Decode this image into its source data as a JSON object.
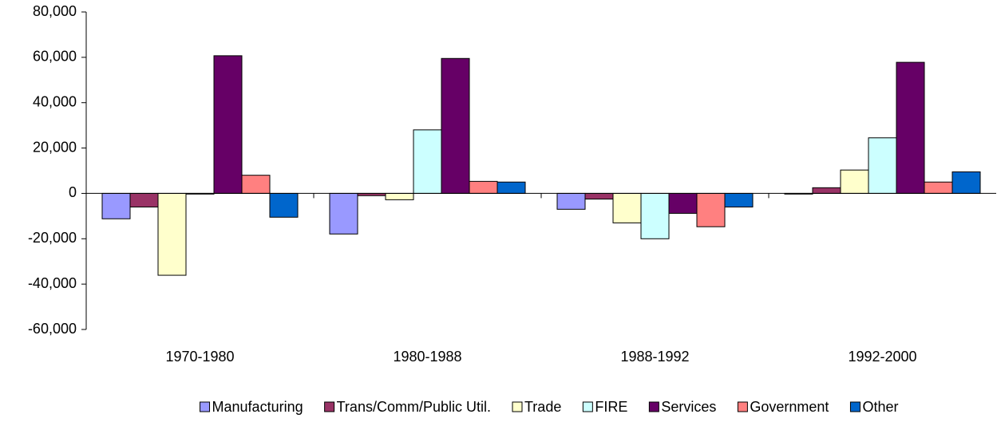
{
  "chart_data": {
    "type": "bar",
    "categories": [
      "1970-1980",
      "1980-1988",
      "1988-1992",
      "1992-2000"
    ],
    "series": [
      {
        "name": "Manufacturing",
        "color": "#9999ff",
        "values": [
          -11200,
          -17900,
          -7000,
          -300
        ]
      },
      {
        "name": "Trans/Comm/Public Util.",
        "color": "#993366",
        "values": [
          -6000,
          -1000,
          -2500,
          2500
        ]
      },
      {
        "name": "Trade",
        "color": "#ffffcc",
        "values": [
          -36100,
          -2800,
          -13000,
          10300
        ]
      },
      {
        "name": "FIRE",
        "color": "#ccffff",
        "values": [
          -300,
          28000,
          -20000,
          24500
        ]
      },
      {
        "name": "Services",
        "color": "#660066",
        "values": [
          60700,
          59500,
          -8800,
          57800
        ]
      },
      {
        "name": "Government",
        "color": "#ff8080",
        "values": [
          8000,
          5300,
          -14700,
          5000
        ]
      },
      {
        "name": "Other",
        "color": "#0066cc",
        "values": [
          -10500,
          5000,
          -6000,
          9500
        ]
      }
    ],
    "ylim": [
      -60000,
      80000
    ],
    "yticks": [
      {
        "value": -60000,
        "label": "-60,000"
      },
      {
        "value": -40000,
        "label": "-40,000"
      },
      {
        "value": -20000,
        "label": "-20,000"
      },
      0,
      {
        "value": 20000,
        "label": "20,000"
      },
      {
        "value": 40000,
        "label": "40,000"
      },
      {
        "value": 60000,
        "label": "60,000"
      },
      {
        "value": 80000,
        "label": "80,000"
      }
    ],
    "grid": false,
    "legend": "bottom"
  }
}
